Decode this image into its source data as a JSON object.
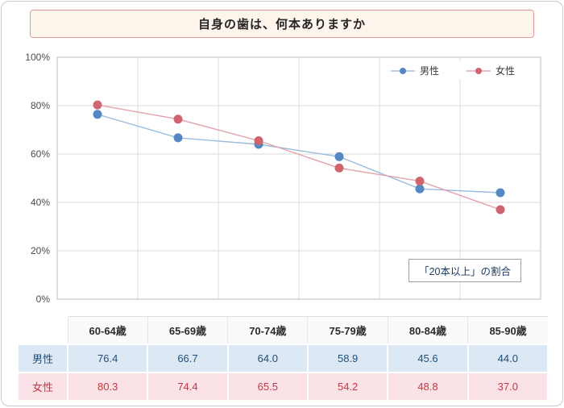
{
  "page": {
    "unit_label": "(%)"
  },
  "chart_data": {
    "type": "line",
    "title": "自身の歯は、何本ありますか",
    "categories": [
      "60-64歳",
      "65-69歳",
      "70-74歳",
      "75-79歳",
      "80-84歳",
      "85-90歳"
    ],
    "series": [
      {
        "name": "男性",
        "color": "#5587c2",
        "line_color": "#9bbcdd",
        "row_bg": "#dce8f4",
        "value_color": "#1f4e79",
        "values": [
          76.4,
          66.7,
          64.0,
          58.9,
          45.6,
          44.0
        ]
      },
      {
        "name": "女性",
        "color": "#d1646c",
        "line_color": "#e2a3a8",
        "row_bg": "#fbe2e6",
        "value_color": "#c13845",
        "values": [
          80.3,
          74.4,
          65.5,
          54.2,
          48.8,
          37.0
        ]
      }
    ],
    "xlabel": "",
    "ylabel": "",
    "ylim": [
      0,
      100
    ],
    "yticks": [
      "0%",
      "20%",
      "40%",
      "60%",
      "80%",
      "100%"
    ],
    "grid": true,
    "legend_position": "top-right",
    "annotation": "「20本以上」の割合"
  }
}
